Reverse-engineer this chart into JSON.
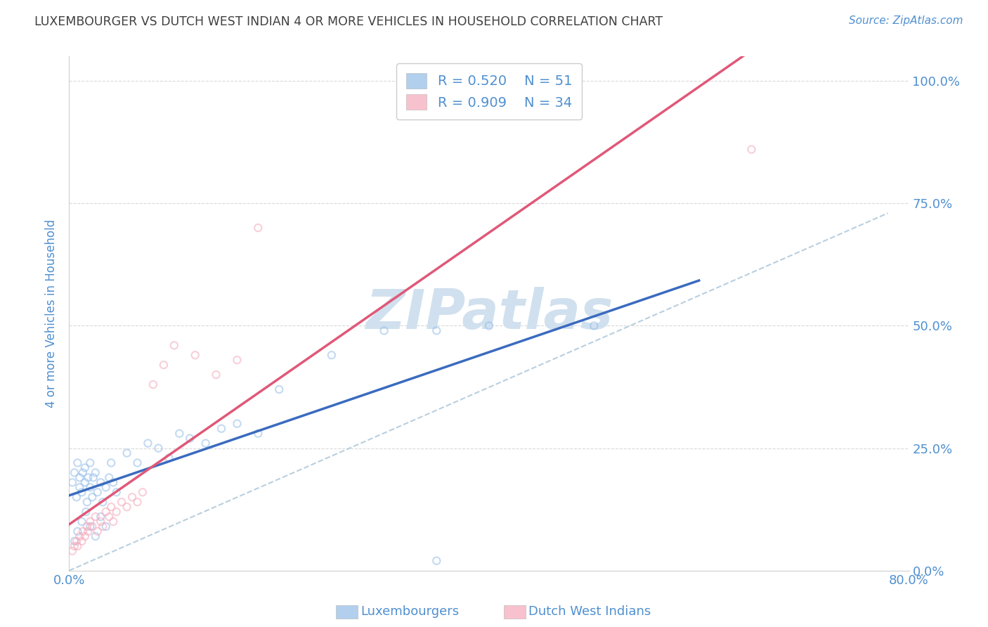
{
  "title": "LUXEMBOURGER VS DUTCH WEST INDIAN 4 OR MORE VEHICLES IN HOUSEHOLD CORRELATION CHART",
  "source": "Source: ZipAtlas.com",
  "ylabel": "4 or more Vehicles in Household",
  "xlim": [
    0.0,
    0.8
  ],
  "ylim": [
    0.0,
    1.05
  ],
  "x_ticks": [
    0.0,
    0.16,
    0.32,
    0.48,
    0.64,
    0.8
  ],
  "x_tick_labels_show": [
    "0.0%",
    "",
    "",
    "",
    "",
    "80.0%"
  ],
  "y_ticks": [
    0.0,
    0.25,
    0.5,
    0.75,
    1.0
  ],
  "y_tick_labels": [
    "0.0%",
    "25.0%",
    "50.0%",
    "75.0%",
    "100.0%"
  ],
  "blue_R": 0.52,
  "blue_N": 51,
  "pink_R": 0.909,
  "pink_N": 34,
  "blue_color": "#92bce8",
  "pink_color": "#f4a8ba",
  "blue_line_color": "#3a6bbf",
  "pink_line_color": "#e05878",
  "dashed_line_color": "#a8c4d8",
  "grid_color": "#d0d0d0",
  "title_color": "#404040",
  "axis_label_color": "#5090d0",
  "watermark_color": "#d0e0ee",
  "background_color": "#ffffff",
  "blue_scatter_x": [
    0.003,
    0.005,
    0.007,
    0.008,
    0.01,
    0.01,
    0.012,
    0.013,
    0.015,
    0.015,
    0.017,
    0.018,
    0.02,
    0.02,
    0.022,
    0.023,
    0.025,
    0.027,
    0.03,
    0.032,
    0.035,
    0.038,
    0.04,
    0.042,
    0.045,
    0.005,
    0.008,
    0.012,
    0.016,
    0.02,
    0.025,
    0.03,
    0.035,
    0.055,
    0.065,
    0.075,
    0.085,
    0.095,
    0.105,
    0.115,
    0.13,
    0.145,
    0.16,
    0.18,
    0.2,
    0.25,
    0.3,
    0.35,
    0.4,
    0.5,
    0.35
  ],
  "blue_scatter_y": [
    0.18,
    0.2,
    0.15,
    0.22,
    0.17,
    0.19,
    0.16,
    0.2,
    0.18,
    0.21,
    0.14,
    0.19,
    0.17,
    0.22,
    0.15,
    0.19,
    0.2,
    0.16,
    0.18,
    0.14,
    0.17,
    0.19,
    0.22,
    0.18,
    0.16,
    0.06,
    0.08,
    0.1,
    0.12,
    0.09,
    0.07,
    0.11,
    0.09,
    0.24,
    0.22,
    0.26,
    0.25,
    0.23,
    0.28,
    0.27,
    0.26,
    0.29,
    0.3,
    0.28,
    0.37,
    0.44,
    0.49,
    0.49,
    0.5,
    0.5,
    0.02
  ],
  "pink_scatter_x": [
    0.003,
    0.005,
    0.007,
    0.008,
    0.01,
    0.012,
    0.013,
    0.015,
    0.017,
    0.018,
    0.02,
    0.022,
    0.025,
    0.027,
    0.03,
    0.032,
    0.035,
    0.038,
    0.04,
    0.042,
    0.045,
    0.05,
    0.055,
    0.06,
    0.065,
    0.07,
    0.08,
    0.09,
    0.1,
    0.12,
    0.14,
    0.16,
    0.18,
    0.65
  ],
  "pink_scatter_y": [
    0.04,
    0.05,
    0.06,
    0.05,
    0.07,
    0.06,
    0.08,
    0.07,
    0.09,
    0.08,
    0.1,
    0.09,
    0.11,
    0.08,
    0.1,
    0.09,
    0.12,
    0.11,
    0.13,
    0.1,
    0.12,
    0.14,
    0.13,
    0.15,
    0.14,
    0.16,
    0.38,
    0.42,
    0.46,
    0.44,
    0.4,
    0.43,
    0.7,
    0.86
  ],
  "legend_label_blue": "Luxembourgers",
  "legend_label_pink": "Dutch West Indians",
  "marker_size": 55,
  "marker_alpha": 0.55,
  "marker_linewidth": 1.5
}
